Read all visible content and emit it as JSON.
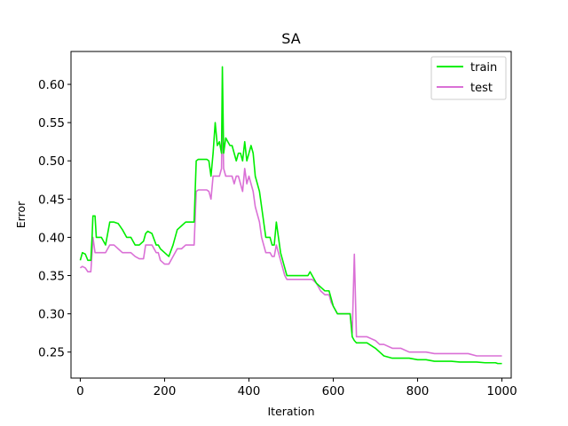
{
  "chart_data": {
    "type": "line",
    "title": "SA",
    "xlabel": "Iteration",
    "ylabel": "Error",
    "xlim": [
      -22,
      1022
    ],
    "ylim": [
      0.216,
      0.643
    ],
    "xticks": [
      0,
      200,
      400,
      600,
      800,
      1000
    ],
    "xtick_labels": [
      "0",
      "200",
      "400",
      "600",
      "800",
      "1000"
    ],
    "yticks": [
      0.25,
      0.3,
      0.35,
      0.4,
      0.45,
      0.5,
      0.55,
      0.6
    ],
    "ytick_labels": [
      "0.25",
      "0.30",
      "0.35",
      "0.40",
      "0.45",
      "0.50",
      "0.55",
      "0.60"
    ],
    "grid": false,
    "legend_position": "top-right",
    "colors": {
      "train": "#00ee00",
      "test": "#da70d6"
    },
    "series": [
      {
        "name": "train",
        "x": [
          0,
          5,
          12,
          18,
          25,
          28,
          30,
          35,
          38,
          40,
          45,
          50,
          60,
          70,
          80,
          90,
          100,
          110,
          120,
          130,
          140,
          150,
          155,
          160,
          170,
          180,
          185,
          190,
          200,
          210,
          220,
          230,
          240,
          250,
          255,
          260,
          270,
          275,
          280,
          300,
          305,
          310,
          315,
          320,
          325,
          330,
          335,
          337,
          340,
          345,
          350,
          355,
          360,
          365,
          370,
          375,
          380,
          385,
          390,
          395,
          400,
          405,
          410,
          415,
          420,
          425,
          430,
          435,
          440,
          445,
          450,
          455,
          460,
          465,
          470,
          475,
          480,
          485,
          490,
          500,
          510,
          520,
          530,
          540,
          545,
          550,
          560,
          570,
          580,
          590,
          595,
          600,
          610,
          620,
          630,
          640,
          645,
          650,
          655,
          660,
          680,
          700,
          710,
          720,
          740,
          760,
          780,
          800,
          820,
          840,
          860,
          880,
          900,
          920,
          940,
          960,
          975,
          985,
          990,
          1000
        ],
        "y": [
          0.37,
          0.38,
          0.378,
          0.37,
          0.37,
          0.4,
          0.428,
          0.428,
          0.4,
          0.4,
          0.4,
          0.4,
          0.39,
          0.42,
          0.42,
          0.418,
          0.41,
          0.4,
          0.4,
          0.39,
          0.39,
          0.395,
          0.405,
          0.408,
          0.405,
          0.39,
          0.39,
          0.385,
          0.38,
          0.375,
          0.39,
          0.41,
          0.415,
          0.42,
          0.42,
          0.42,
          0.42,
          0.5,
          0.502,
          0.502,
          0.5,
          0.48,
          0.51,
          0.55,
          0.52,
          0.525,
          0.51,
          0.623,
          0.51,
          0.53,
          0.525,
          0.52,
          0.52,
          0.51,
          0.5,
          0.51,
          0.51,
          0.5,
          0.525,
          0.5,
          0.51,
          0.52,
          0.51,
          0.48,
          0.47,
          0.46,
          0.44,
          0.42,
          0.4,
          0.4,
          0.4,
          0.39,
          0.39,
          0.42,
          0.4,
          0.38,
          0.37,
          0.36,
          0.35,
          0.35,
          0.35,
          0.35,
          0.35,
          0.35,
          0.355,
          0.35,
          0.34,
          0.335,
          0.33,
          0.33,
          0.32,
          0.31,
          0.3,
          0.3,
          0.3,
          0.3,
          0.27,
          0.265,
          0.262,
          0.262,
          0.262,
          0.255,
          0.25,
          0.245,
          0.242,
          0.242,
          0.242,
          0.24,
          0.24,
          0.238,
          0.238,
          0.238,
          0.237,
          0.237,
          0.237,
          0.236,
          0.236,
          0.236,
          0.235,
          0.235
        ]
      },
      {
        "name": "test",
        "x": [
          0,
          5,
          12,
          18,
          25,
          28,
          30,
          35,
          38,
          40,
          45,
          50,
          60,
          70,
          80,
          90,
          100,
          110,
          120,
          130,
          140,
          150,
          155,
          160,
          170,
          180,
          185,
          190,
          200,
          210,
          220,
          230,
          240,
          250,
          255,
          260,
          270,
          275,
          280,
          300,
          305,
          310,
          315,
          320,
          325,
          330,
          335,
          337,
          340,
          345,
          350,
          355,
          360,
          365,
          370,
          375,
          380,
          385,
          390,
          395,
          400,
          405,
          410,
          415,
          420,
          425,
          430,
          435,
          440,
          445,
          450,
          455,
          460,
          465,
          470,
          475,
          480,
          485,
          490,
          500,
          510,
          520,
          530,
          540,
          545,
          550,
          560,
          570,
          580,
          590,
          595,
          600,
          610,
          620,
          630,
          640,
          645,
          650,
          655,
          660,
          680,
          700,
          710,
          720,
          740,
          760,
          780,
          800,
          820,
          840,
          860,
          880,
          900,
          920,
          940,
          960,
          975,
          985,
          990,
          1000
        ],
        "y": [
          0.36,
          0.362,
          0.36,
          0.355,
          0.355,
          0.38,
          0.4,
          0.38,
          0.38,
          0.38,
          0.38,
          0.38,
          0.38,
          0.39,
          0.39,
          0.385,
          0.38,
          0.38,
          0.38,
          0.375,
          0.372,
          0.372,
          0.39,
          0.39,
          0.39,
          0.38,
          0.38,
          0.37,
          0.365,
          0.365,
          0.375,
          0.385,
          0.385,
          0.39,
          0.39,
          0.39,
          0.39,
          0.46,
          0.462,
          0.462,
          0.46,
          0.45,
          0.48,
          0.48,
          0.48,
          0.48,
          0.49,
          0.573,
          0.49,
          0.48,
          0.48,
          0.48,
          0.48,
          0.47,
          0.48,
          0.48,
          0.47,
          0.46,
          0.49,
          0.47,
          0.48,
          0.47,
          0.46,
          0.44,
          0.43,
          0.42,
          0.4,
          0.39,
          0.38,
          0.38,
          0.38,
          0.375,
          0.375,
          0.39,
          0.38,
          0.37,
          0.36,
          0.35,
          0.345,
          0.345,
          0.345,
          0.345,
          0.345,
          0.345,
          0.345,
          0.345,
          0.34,
          0.33,
          0.325,
          0.325,
          0.315,
          0.31,
          0.3,
          0.3,
          0.3,
          0.3,
          0.275,
          0.378,
          0.27,
          0.27,
          0.27,
          0.265,
          0.26,
          0.26,
          0.255,
          0.255,
          0.25,
          0.25,
          0.25,
          0.248,
          0.248,
          0.248,
          0.248,
          0.248,
          0.245,
          0.245,
          0.245,
          0.245,
          0.245,
          0.245
        ]
      }
    ]
  }
}
